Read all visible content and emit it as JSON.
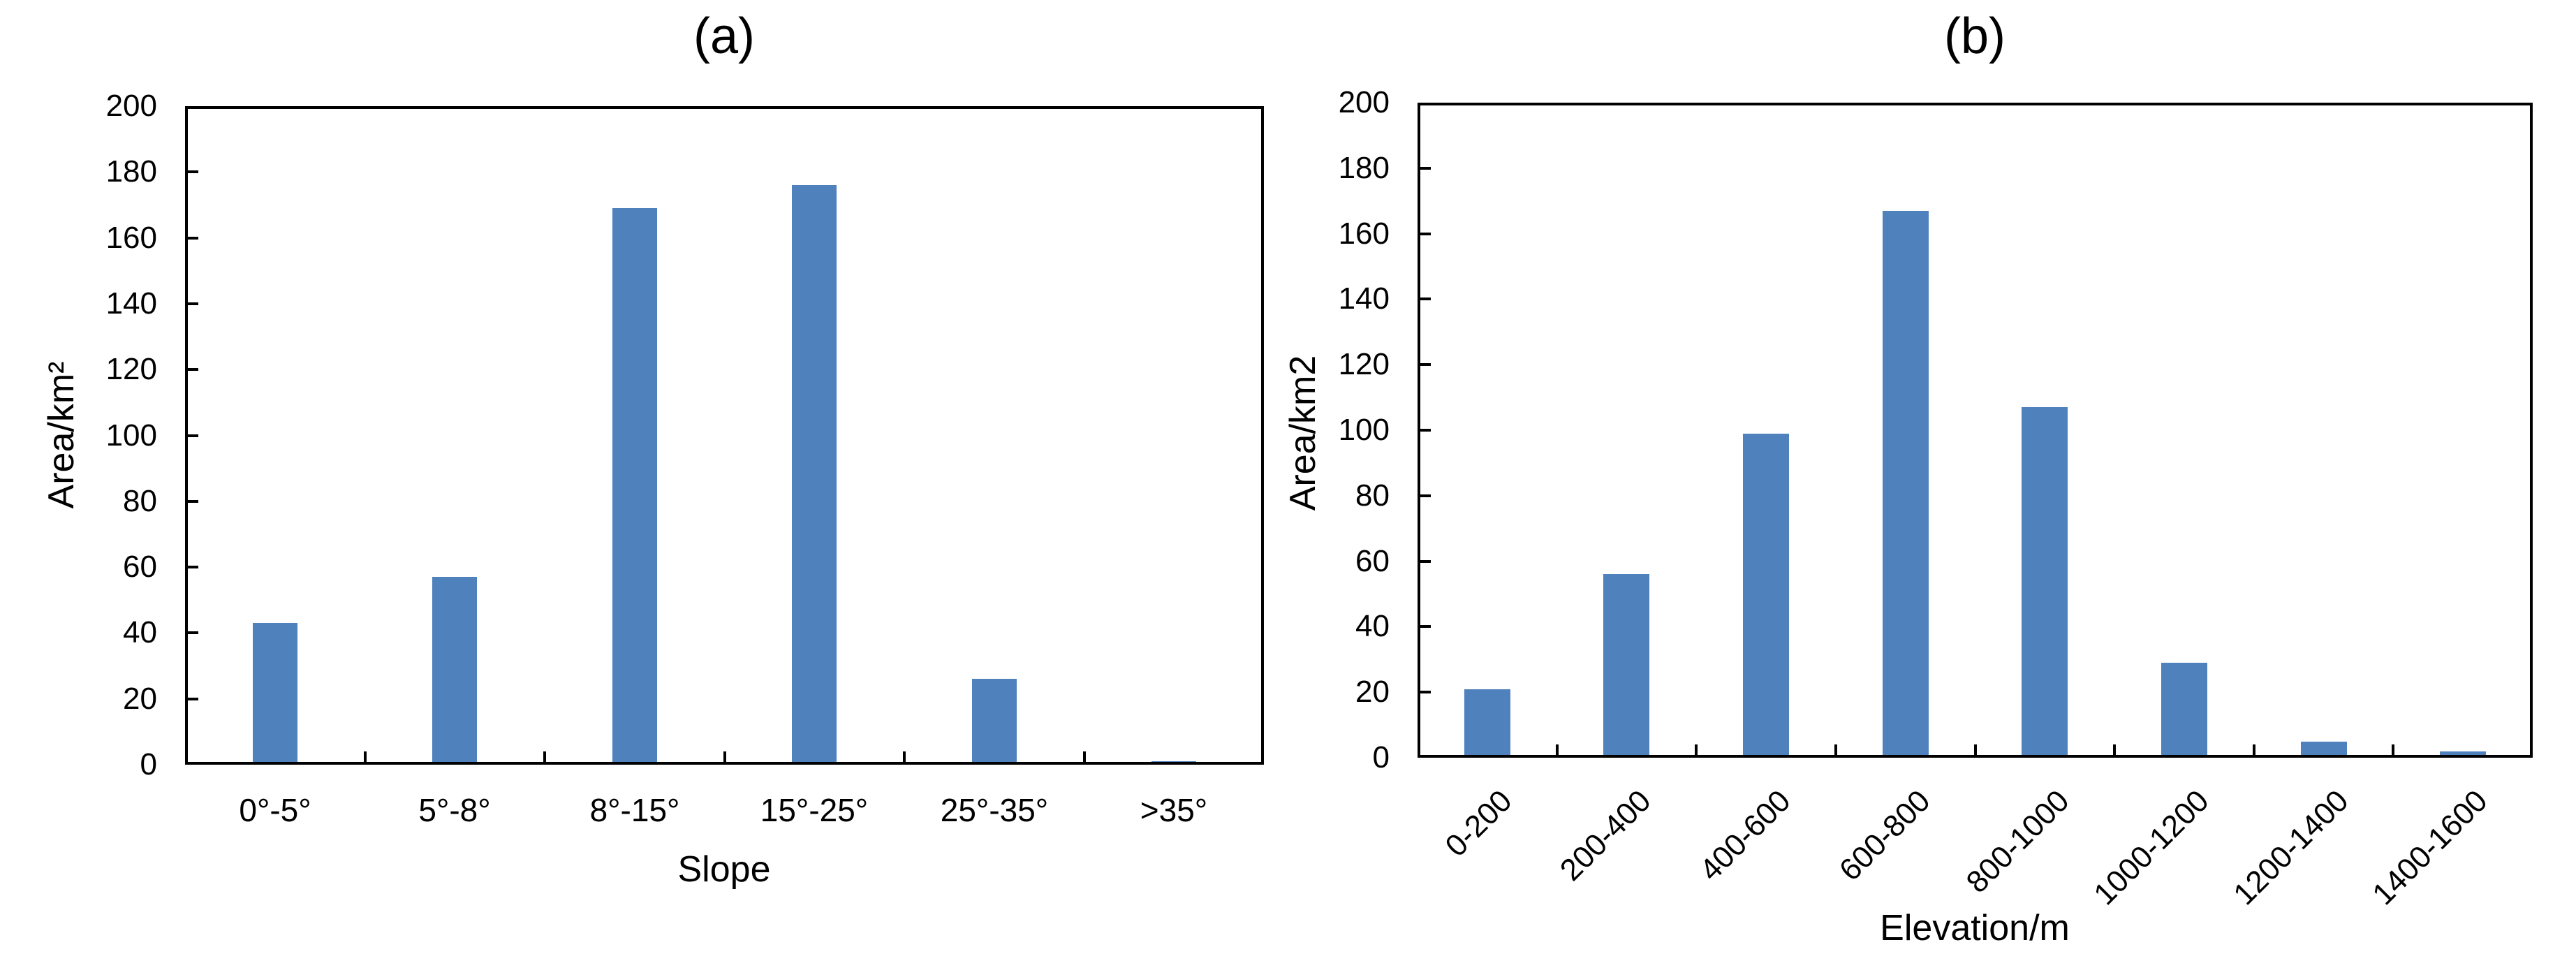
{
  "figure": {
    "background": "#ffffff",
    "text_color": "#000000",
    "frame_color": "#000000"
  },
  "chart_data": [
    {
      "type": "bar",
      "panel": "(a)",
      "title": "(a)",
      "categories": [
        "0°-5°",
        "5°-8°",
        "8°-15°",
        "15°-25°",
        "25°-35°",
        ">35°"
      ],
      "values": [
        43,
        57,
        169,
        176,
        26,
        1
      ],
      "xlabel": "Slope",
      "ylabel": "Area/km²",
      "ylim": [
        0,
        200
      ],
      "ytick_step": 20,
      "xtick_rotation": 0,
      "grid": false,
      "legend": false,
      "bar_color": "#4F81BD"
    },
    {
      "type": "bar",
      "panel": "(b)",
      "title": "(b)",
      "categories": [
        "0-200",
        "200-400",
        "400-600",
        "600-800",
        "800-1000",
        "1000-1200",
        "1200-1400",
        "1400-1600"
      ],
      "values": [
        21,
        56,
        99,
        167,
        107,
        29,
        5,
        2
      ],
      "xlabel": "Elevation/m",
      "ylabel": "Area/km2",
      "ylim": [
        0,
        200
      ],
      "ytick_step": 20,
      "xtick_rotation": -45,
      "grid": false,
      "legend": false,
      "bar_color": "#4F81BD"
    }
  ]
}
